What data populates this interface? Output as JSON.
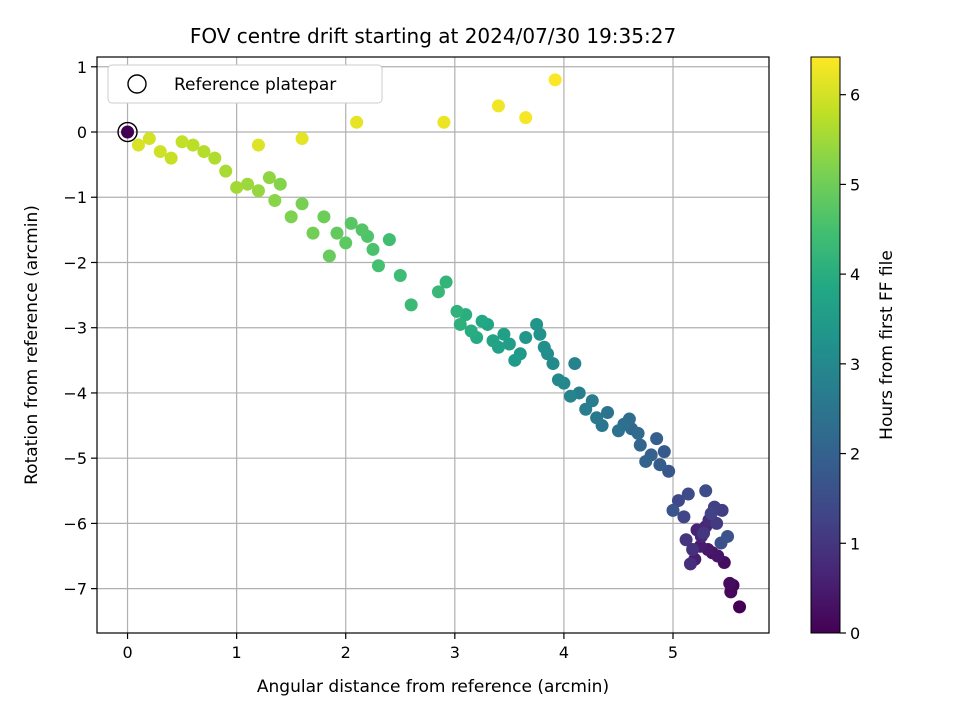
{
  "chart_data": {
    "type": "scatter",
    "title": "FOV centre drift starting at 2024/07/30 19:35:27",
    "xlabel": "Angular distance from reference (arcmin)",
    "ylabel": "Rotation from reference (arcmin)",
    "xlim": [
      -0.28,
      5.88
    ],
    "ylim": [
      -7.68,
      1.15
    ],
    "xticks": [
      0,
      1,
      2,
      3,
      4,
      5
    ],
    "yticks": [
      1,
      0,
      -1,
      -2,
      -3,
      -4,
      -5,
      -6,
      -7
    ],
    "grid": true,
    "legend": {
      "position": "upper-left",
      "entries": [
        "Reference platepar"
      ]
    },
    "reference_point": {
      "x": 0,
      "y": 0,
      "marker": "open-circle"
    },
    "colorbar": {
      "label": "Hours from first FF file",
      "colormap": "viridis",
      "range": [
        0,
        6.42
      ],
      "ticks": [
        0,
        1,
        2,
        3,
        4,
        5,
        6
      ]
    },
    "series": [
      {
        "color_by": "hours",
        "points": [
          [
            5.61,
            -7.28,
            0.0
          ],
          [
            5.55,
            -6.95,
            0.06
          ],
          [
            5.53,
            -7.05,
            0.12
          ],
          [
            5.52,
            -6.92,
            0.18
          ],
          [
            5.47,
            -6.6,
            0.24
          ],
          [
            5.36,
            -6.45,
            0.3
          ],
          [
            5.41,
            -6.5,
            0.36
          ],
          [
            5.32,
            -6.4,
            0.42
          ],
          [
            5.25,
            -6.35,
            0.48
          ],
          [
            5.2,
            -6.55,
            0.54
          ],
          [
            5.22,
            -6.1,
            0.6
          ],
          [
            5.26,
            -6.2,
            0.66
          ],
          [
            5.3,
            -6.05,
            0.72
          ],
          [
            5.33,
            -5.95,
            0.78
          ],
          [
            5.16,
            -6.62,
            0.84
          ],
          [
            5.18,
            -6.4,
            0.9
          ],
          [
            5.12,
            -6.25,
            0.96
          ],
          [
            5.28,
            -6.15,
            1.02
          ],
          [
            5.4,
            -6.0,
            1.08
          ],
          [
            5.45,
            -5.8,
            1.14
          ],
          [
            5.38,
            -5.75,
            1.2
          ],
          [
            5.35,
            -5.85,
            1.26
          ],
          [
            5.1,
            -5.9,
            1.32
          ],
          [
            5.05,
            -5.65,
            1.38
          ],
          [
            5.14,
            -5.55,
            1.44
          ],
          [
            5.3,
            -5.5,
            1.5
          ],
          [
            5.44,
            -6.3,
            1.56
          ],
          [
            5.5,
            -6.2,
            1.62
          ],
          [
            5.0,
            -5.8,
            1.68
          ],
          [
            4.96,
            -5.2,
            1.74
          ],
          [
            4.92,
            -4.9,
            1.8
          ],
          [
            4.88,
            -5.1,
            1.86
          ],
          [
            4.85,
            -4.7,
            1.92
          ],
          [
            4.8,
            -4.95,
            1.98
          ],
          [
            4.75,
            -5.05,
            2.04
          ],
          [
            4.7,
            -4.8,
            2.1
          ],
          [
            4.62,
            -4.55,
            2.16
          ],
          [
            4.68,
            -4.62,
            2.22
          ],
          [
            4.6,
            -4.4,
            2.28
          ],
          [
            4.55,
            -4.48,
            2.34
          ],
          [
            4.5,
            -4.58,
            2.4
          ],
          [
            4.4,
            -4.3,
            2.46
          ],
          [
            4.35,
            -4.5,
            2.52
          ],
          [
            4.3,
            -4.38,
            2.58
          ],
          [
            4.26,
            -4.12,
            2.64
          ],
          [
            4.2,
            -4.25,
            2.7
          ],
          [
            4.14,
            -4.0,
            2.76
          ],
          [
            4.1,
            -3.55,
            2.82
          ],
          [
            4.06,
            -4.05,
            2.88
          ],
          [
            4.0,
            -3.85,
            2.94
          ],
          [
            3.95,
            -3.8,
            3.0
          ],
          [
            3.9,
            -3.55,
            3.06
          ],
          [
            3.85,
            -3.4,
            3.12
          ],
          [
            3.82,
            -3.3,
            3.18
          ],
          [
            3.78,
            -3.1,
            3.24
          ],
          [
            3.75,
            -2.95,
            3.3
          ],
          [
            3.65,
            -3.15,
            3.36
          ],
          [
            3.6,
            -3.4,
            3.42
          ],
          [
            3.55,
            -3.5,
            3.48
          ],
          [
            3.5,
            -3.25,
            3.54
          ],
          [
            3.45,
            -3.1,
            3.6
          ],
          [
            3.4,
            -3.3,
            3.66
          ],
          [
            3.35,
            -3.2,
            3.72
          ],
          [
            3.3,
            -2.95,
            3.78
          ],
          [
            3.25,
            -2.9,
            3.84
          ],
          [
            3.2,
            -3.15,
            3.9
          ],
          [
            3.15,
            -3.05,
            3.96
          ],
          [
            3.1,
            -2.8,
            4.02
          ],
          [
            3.05,
            -2.95,
            4.08
          ],
          [
            3.02,
            -2.75,
            4.14
          ],
          [
            2.92,
            -2.3,
            4.2
          ],
          [
            2.85,
            -2.45,
            4.26
          ],
          [
            2.6,
            -2.65,
            4.32
          ],
          [
            2.5,
            -2.2,
            4.38
          ],
          [
            2.4,
            -1.65,
            4.44
          ],
          [
            2.3,
            -2.05,
            4.5
          ],
          [
            2.25,
            -1.8,
            4.56
          ],
          [
            2.2,
            -1.6,
            4.62
          ],
          [
            2.15,
            -1.5,
            4.68
          ],
          [
            2.05,
            -1.4,
            4.74
          ],
          [
            2.0,
            -1.7,
            4.8
          ],
          [
            1.92,
            -1.55,
            4.86
          ],
          [
            1.85,
            -1.9,
            4.92
          ],
          [
            1.8,
            -1.3,
            4.98
          ],
          [
            1.7,
            -1.55,
            5.04
          ],
          [
            1.6,
            -1.1,
            5.1
          ],
          [
            1.5,
            -1.3,
            5.16
          ],
          [
            1.4,
            -0.8,
            5.22
          ],
          [
            1.35,
            -1.05,
            5.28
          ],
          [
            1.3,
            -0.7,
            5.34
          ],
          [
            1.2,
            -0.9,
            5.4
          ],
          [
            1.1,
            -0.8,
            5.46
          ],
          [
            1.0,
            -0.85,
            5.52
          ],
          [
            0.9,
            -0.6,
            5.58
          ],
          [
            0.8,
            -0.4,
            5.64
          ],
          [
            0.7,
            -0.3,
            5.7
          ],
          [
            0.6,
            -0.2,
            5.76
          ],
          [
            0.5,
            -0.15,
            5.82
          ],
          [
            0.4,
            -0.4,
            5.88
          ],
          [
            0.3,
            -0.3,
            5.94
          ],
          [
            0.2,
            -0.1,
            6.0
          ],
          [
            0.1,
            -0.2,
            6.05
          ],
          [
            1.2,
            -0.2,
            6.1
          ],
          [
            1.6,
            -0.1,
            6.15
          ],
          [
            2.1,
            0.15,
            6.2
          ],
          [
            2.9,
            0.15,
            6.25
          ],
          [
            3.4,
            0.4,
            6.3
          ],
          [
            3.65,
            0.22,
            6.35
          ],
          [
            3.92,
            0.8,
            6.4
          ]
        ]
      }
    ]
  }
}
